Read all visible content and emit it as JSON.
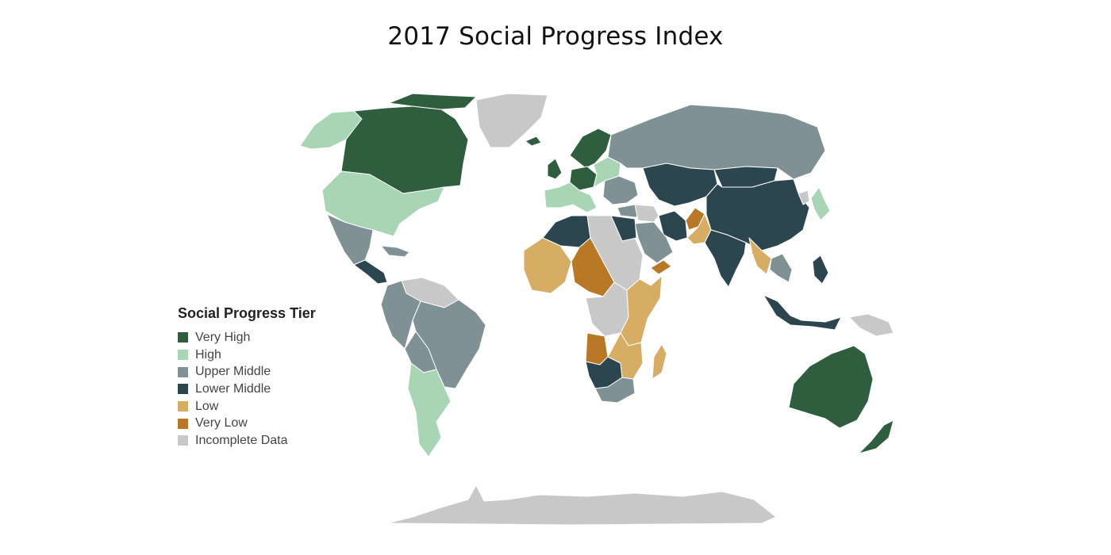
{
  "title": "2017 Social Progress Index",
  "legend": {
    "title": "Social Progress Tier",
    "items": [
      {
        "label": "Very High",
        "color": "#2e5e3e"
      },
      {
        "label": "High",
        "color": "#a8d5b3"
      },
      {
        "label": "Upper Middle",
        "color": "#7f9194"
      },
      {
        "label": "Lower Middle",
        "color": "#2c4650"
      },
      {
        "label": "Low",
        "color": "#d6ad63"
      },
      {
        "label": "Very Low",
        "color": "#b87825"
      },
      {
        "label": "Incomplete Data",
        "color": "#c8c8c8"
      }
    ]
  },
  "regions": [
    {
      "name": "alaska",
      "tier": "High"
    },
    {
      "name": "canada",
      "tier": "Very High"
    },
    {
      "name": "canadian-arctic",
      "tier": "Very High"
    },
    {
      "name": "greenland",
      "tier": "Incomplete Data"
    },
    {
      "name": "iceland",
      "tier": "Very High"
    },
    {
      "name": "usa",
      "tier": "High"
    },
    {
      "name": "mexico",
      "tier": "Upper Middle"
    },
    {
      "name": "central-america",
      "tier": "Lower Middle"
    },
    {
      "name": "caribbean",
      "tier": "Upper Middle"
    },
    {
      "name": "guianas",
      "tier": "Incomplete Data"
    },
    {
      "name": "northern-south-america",
      "tier": "Upper Middle"
    },
    {
      "name": "brazil",
      "tier": "Upper Middle"
    },
    {
      "name": "bolivia-paraguay",
      "tier": "Upper Middle"
    },
    {
      "name": "southern-cone",
      "tier": "High"
    },
    {
      "name": "scandinavia",
      "tier": "Very High"
    },
    {
      "name": "uk-ireland",
      "tier": "Very High"
    },
    {
      "name": "western-europe",
      "tier": "Very High"
    },
    {
      "name": "southern-europe",
      "tier": "High"
    },
    {
      "name": "eastern-europe",
      "tier": "High"
    },
    {
      "name": "balkans-ukraine",
      "tier": "Upper Middle"
    },
    {
      "name": "russia",
      "tier": "Upper Middle"
    },
    {
      "name": "turkey",
      "tier": "Upper Middle"
    },
    {
      "name": "central-asia",
      "tier": "Lower Middle"
    },
    {
      "name": "mongolia",
      "tier": "Lower Middle"
    },
    {
      "name": "china",
      "tier": "Lower Middle"
    },
    {
      "name": "korea-japan",
      "tier": "High"
    },
    {
      "name": "north-korea",
      "tier": "Incomplete Data"
    },
    {
      "name": "iran",
      "tier": "Lower Middle"
    },
    {
      "name": "afghanistan",
      "tier": "Very Low"
    },
    {
      "name": "pakistan",
      "tier": "Low"
    },
    {
      "name": "india",
      "tier": "Lower Middle"
    },
    {
      "name": "arabia",
      "tier": "Upper Middle"
    },
    {
      "name": "yemen",
      "tier": "Very Low"
    },
    {
      "name": "middle-east-gray",
      "tier": "Incomplete Data"
    },
    {
      "name": "southeast-asia",
      "tier": "Low"
    },
    {
      "name": "indochina",
      "tier": "Upper Middle"
    },
    {
      "name": "maritime-se-asia",
      "tier": "Lower Middle"
    },
    {
      "name": "philippines",
      "tier": "Lower Middle"
    },
    {
      "name": "new-guinea",
      "tier": "Incomplete Data"
    },
    {
      "name": "australia",
      "tier": "Very High"
    },
    {
      "name": "new-zealand",
      "tier": "Very High"
    },
    {
      "name": "north-africa",
      "tier": "Lower Middle"
    },
    {
      "name": "libya-sudan",
      "tier": "Incomplete Data"
    },
    {
      "name": "egypt",
      "tier": "Lower Middle"
    },
    {
      "name": "west-africa",
      "tier": "Low"
    },
    {
      "name": "sahel",
      "tier": "Very Low"
    },
    {
      "name": "central-africa",
      "tier": "Incomplete Data"
    },
    {
      "name": "east-africa",
      "tier": "Low"
    },
    {
      "name": "angola-drc",
      "tier": "Very Low"
    },
    {
      "name": "southern-africa",
      "tier": "Lower Middle"
    },
    {
      "name": "south-africa",
      "tier": "Upper Middle"
    },
    {
      "name": "mozambique-zambia",
      "tier": "Low"
    },
    {
      "name": "madagascar",
      "tier": "Low"
    },
    {
      "name": "antarctica",
      "tier": "Incomplete Data"
    }
  ]
}
